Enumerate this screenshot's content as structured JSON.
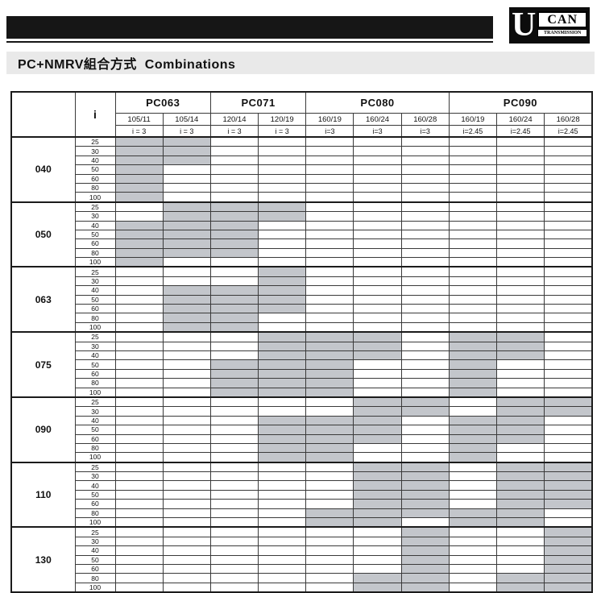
{
  "banner": {
    "logo": {
      "u": "U",
      "can": "CAN",
      "transmission": "TRANSMISSION"
    }
  },
  "title": "PC+NMRV組合方式  Combinations",
  "colors": {
    "shaded_cell": "#c3c6cb",
    "banner_black": "#161616",
    "title_bar_bg": "#e9e9e9"
  },
  "table": {
    "i_header": "i",
    "groups": [
      {
        "name": "PC063",
        "models": [
          {
            "label": "105/11",
            "ratio": "i = 3"
          },
          {
            "label": "105/14",
            "ratio": "i = 3"
          }
        ]
      },
      {
        "name": "PC071",
        "models": [
          {
            "label": "120/14",
            "ratio": "i = 3"
          },
          {
            "label": "120/19",
            "ratio": "i = 3"
          }
        ]
      },
      {
        "name": "PC080",
        "models": [
          {
            "label": "160/19",
            "ratio": "i=3"
          },
          {
            "label": "160/24",
            "ratio": "i=3"
          },
          {
            "label": "160/28",
            "ratio": "i=3"
          }
        ]
      },
      {
        "name": "PC090",
        "models": [
          {
            "label": "160/19",
            "ratio": "i=2.45"
          },
          {
            "label": "160/24",
            "ratio": "i=2.45"
          },
          {
            "label": "160/28",
            "ratio": "i=2.45"
          }
        ]
      }
    ],
    "row_groups": [
      {
        "label": "040",
        "rows": [
          {
            "i": "25",
            "cells": [
              1,
              1,
              0,
              0,
              0,
              0,
              0,
              0,
              0,
              0
            ]
          },
          {
            "i": "30",
            "cells": [
              1,
              1,
              0,
              0,
              0,
              0,
              0,
              0,
              0,
              0
            ]
          },
          {
            "i": "40",
            "cells": [
              1,
              1,
              0,
              0,
              0,
              0,
              0,
              0,
              0,
              0
            ]
          },
          {
            "i": "50",
            "cells": [
              1,
              0,
              0,
              0,
              0,
              0,
              0,
              0,
              0,
              0
            ]
          },
          {
            "i": "60",
            "cells": [
              1,
              0,
              0,
              0,
              0,
              0,
              0,
              0,
              0,
              0
            ]
          },
          {
            "i": "80",
            "cells": [
              1,
              0,
              0,
              0,
              0,
              0,
              0,
              0,
              0,
              0
            ]
          },
          {
            "i": "100",
            "cells": [
              1,
              0,
              0,
              0,
              0,
              0,
              0,
              0,
              0,
              0
            ]
          }
        ]
      },
      {
        "label": "050",
        "rows": [
          {
            "i": "25",
            "cells": [
              0,
              1,
              1,
              1,
              0,
              0,
              0,
              0,
              0,
              0
            ]
          },
          {
            "i": "30",
            "cells": [
              0,
              1,
              1,
              1,
              0,
              0,
              0,
              0,
              0,
              0
            ]
          },
          {
            "i": "40",
            "cells": [
              1,
              1,
              1,
              0,
              0,
              0,
              0,
              0,
              0,
              0
            ]
          },
          {
            "i": "50",
            "cells": [
              1,
              1,
              1,
              0,
              0,
              0,
              0,
              0,
              0,
              0
            ]
          },
          {
            "i": "60",
            "cells": [
              1,
              1,
              1,
              0,
              0,
              0,
              0,
              0,
              0,
              0
            ]
          },
          {
            "i": "80",
            "cells": [
              1,
              1,
              1,
              0,
              0,
              0,
              0,
              0,
              0,
              0
            ]
          },
          {
            "i": "100",
            "cells": [
              1,
              0,
              0,
              0,
              0,
              0,
              0,
              0,
              0,
              0
            ]
          }
        ]
      },
      {
        "label": "063",
        "rows": [
          {
            "i": "25",
            "cells": [
              0,
              0,
              0,
              1,
              0,
              0,
              0,
              0,
              0,
              0
            ]
          },
          {
            "i": "30",
            "cells": [
              0,
              0,
              0,
              1,
              0,
              0,
              0,
              0,
              0,
              0
            ]
          },
          {
            "i": "40",
            "cells": [
              0,
              1,
              1,
              1,
              0,
              0,
              0,
              0,
              0,
              0
            ]
          },
          {
            "i": "50",
            "cells": [
              0,
              1,
              1,
              1,
              0,
              0,
              0,
              0,
              0,
              0
            ]
          },
          {
            "i": "60",
            "cells": [
              0,
              1,
              1,
              1,
              0,
              0,
              0,
              0,
              0,
              0
            ]
          },
          {
            "i": "80",
            "cells": [
              0,
              1,
              1,
              0,
              0,
              0,
              0,
              0,
              0,
              0
            ]
          },
          {
            "i": "100",
            "cells": [
              0,
              1,
              1,
              0,
              0,
              0,
              0,
              0,
              0,
              0
            ]
          }
        ]
      },
      {
        "label": "075",
        "rows": [
          {
            "i": "25",
            "cells": [
              0,
              0,
              0,
              1,
              1,
              1,
              0,
              1,
              1,
              0
            ]
          },
          {
            "i": "30",
            "cells": [
              0,
              0,
              0,
              1,
              1,
              1,
              0,
              1,
              1,
              0
            ]
          },
          {
            "i": "40",
            "cells": [
              0,
              0,
              0,
              1,
              1,
              1,
              0,
              1,
              1,
              0
            ]
          },
          {
            "i": "50",
            "cells": [
              0,
              0,
              1,
              1,
              1,
              0,
              0,
              1,
              0,
              0
            ]
          },
          {
            "i": "60",
            "cells": [
              0,
              0,
              1,
              1,
              1,
              0,
              0,
              1,
              0,
              0
            ]
          },
          {
            "i": "80",
            "cells": [
              0,
              0,
              1,
              1,
              1,
              0,
              0,
              1,
              0,
              0
            ]
          },
          {
            "i": "100",
            "cells": [
              0,
              0,
              1,
              1,
              1,
              0,
              0,
              1,
              0,
              0
            ]
          }
        ]
      },
      {
        "label": "090",
        "rows": [
          {
            "i": "25",
            "cells": [
              0,
              0,
              0,
              0,
              0,
              1,
              1,
              0,
              1,
              1
            ]
          },
          {
            "i": "30",
            "cells": [
              0,
              0,
              0,
              0,
              0,
              1,
              1,
              0,
              1,
              1
            ]
          },
          {
            "i": "40",
            "cells": [
              0,
              0,
              0,
              1,
              1,
              1,
              0,
              1,
              1,
              0
            ]
          },
          {
            "i": "50",
            "cells": [
              0,
              0,
              0,
              1,
              1,
              1,
              0,
              1,
              1,
              0
            ]
          },
          {
            "i": "60",
            "cells": [
              0,
              0,
              0,
              1,
              1,
              1,
              0,
              1,
              1,
              0
            ]
          },
          {
            "i": "80",
            "cells": [
              0,
              0,
              0,
              1,
              1,
              0,
              0,
              1,
              0,
              0
            ]
          },
          {
            "i": "100",
            "cells": [
              0,
              0,
              0,
              1,
              1,
              0,
              0,
              1,
              0,
              0
            ]
          }
        ]
      },
      {
        "label": "110",
        "rows": [
          {
            "i": "25",
            "cells": [
              0,
              0,
              0,
              0,
              0,
              1,
              1,
              0,
              1,
              1
            ]
          },
          {
            "i": "30",
            "cells": [
              0,
              0,
              0,
              0,
              0,
              1,
              1,
              0,
              1,
              1
            ]
          },
          {
            "i": "40",
            "cells": [
              0,
              0,
              0,
              0,
              0,
              1,
              1,
              0,
              1,
              1
            ]
          },
          {
            "i": "50",
            "cells": [
              0,
              0,
              0,
              0,
              0,
              1,
              1,
              0,
              1,
              1
            ]
          },
          {
            "i": "60",
            "cells": [
              0,
              0,
              0,
              0,
              0,
              1,
              1,
              0,
              1,
              1
            ]
          },
          {
            "i": "80",
            "cells": [
              0,
              0,
              0,
              0,
              1,
              1,
              1,
              1,
              1,
              0
            ]
          },
          {
            "i": "100",
            "cells": [
              0,
              0,
              0,
              0,
              1,
              1,
              0,
              1,
              1,
              0
            ]
          }
        ]
      },
      {
        "label": "130",
        "rows": [
          {
            "i": "25",
            "cells": [
              0,
              0,
              0,
              0,
              0,
              0,
              1,
              0,
              0,
              1
            ]
          },
          {
            "i": "30",
            "cells": [
              0,
              0,
              0,
              0,
              0,
              0,
              1,
              0,
              0,
              1
            ]
          },
          {
            "i": "40",
            "cells": [
              0,
              0,
              0,
              0,
              0,
              0,
              1,
              0,
              0,
              1
            ]
          },
          {
            "i": "50",
            "cells": [
              0,
              0,
              0,
              0,
              0,
              0,
              1,
              0,
              0,
              1
            ]
          },
          {
            "i": "60",
            "cells": [
              0,
              0,
              0,
              0,
              0,
              0,
              1,
              0,
              0,
              1
            ]
          },
          {
            "i": "80",
            "cells": [
              0,
              0,
              0,
              0,
              0,
              1,
              1,
              0,
              1,
              1
            ]
          },
          {
            "i": "100",
            "cells": [
              0,
              0,
              0,
              0,
              0,
              1,
              1,
              0,
              1,
              1
            ]
          }
        ]
      }
    ]
  }
}
